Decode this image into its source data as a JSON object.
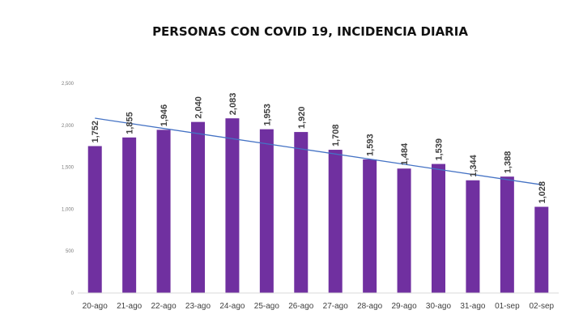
{
  "chart_data": {
    "type": "bar",
    "title": "PERSONAS CON COVID 19, INCIDENCIA DIARIA",
    "categories": [
      "20-ago",
      "21-ago",
      "22-ago",
      "23-ago",
      "24-ago",
      "25-ago",
      "26-ago",
      "27-ago",
      "28-ago",
      "29-ago",
      "30-ago",
      "31-ago",
      "01-sep",
      "02-sep"
    ],
    "values": [
      1752,
      1855,
      1946,
      2040,
      2083,
      1953,
      1920,
      1708,
      1593,
      1484,
      1539,
      1344,
      1388,
      1028
    ],
    "value_labels": [
      "1,752",
      "1,855",
      "1,946",
      "2,040",
      "2,083",
      "1,953",
      "1,920",
      "1,708",
      "1,593",
      "1,484",
      "1,539",
      "1,344",
      "1,388",
      "1,028"
    ],
    "ylim": [
      0,
      2500
    ],
    "yticks": [
      0,
      500,
      1000,
      1500,
      2000,
      2500
    ],
    "ytick_labels": [
      "0",
      "500",
      "1,000",
      "1,500",
      "2,000",
      "2,500"
    ],
    "trendline": {
      "type": "linear",
      "visible": true
    },
    "grid": false,
    "legend": "none",
    "colors": {
      "bar": "#7030a0",
      "trendline": "#4472c4",
      "axis": "#d9d9d9"
    }
  }
}
